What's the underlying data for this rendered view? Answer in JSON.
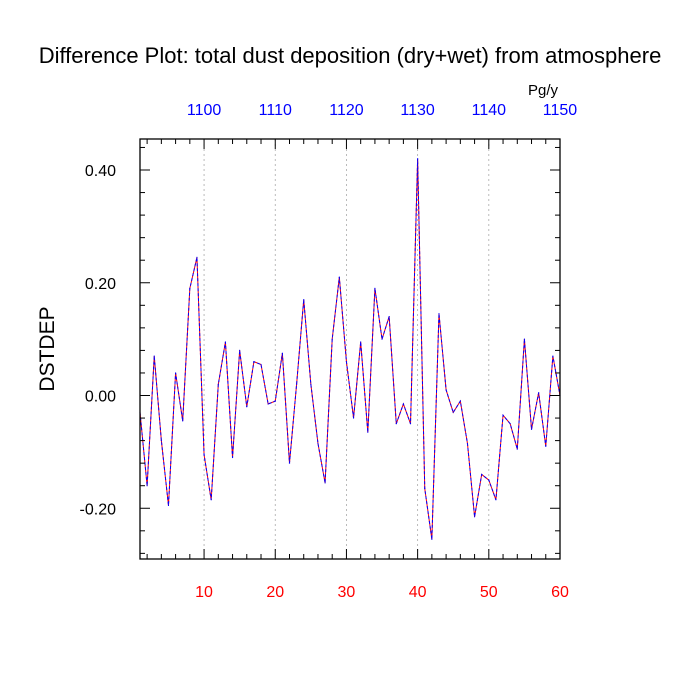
{
  "chart_data": {
    "type": "line",
    "title": "Difference Plot: total dust deposition (dry+wet) from atmosphere",
    "ylabel": "DSTDEP",
    "units": "Pg/y",
    "xlim": [
      1,
      60
    ],
    "ylim": [
      -0.29,
      0.455
    ],
    "x_bottom_ticks": [
      10,
      20,
      30,
      40,
      50,
      60
    ],
    "x_top_ticks": [
      {
        "x": 10,
        "label": "1100"
      },
      {
        "x": 20,
        "label": "1110"
      },
      {
        "x": 30,
        "label": "1120"
      },
      {
        "x": 40,
        "label": "1130"
      },
      {
        "x": 50,
        "label": "1140"
      },
      {
        "x": 60,
        "label": "1150"
      }
    ],
    "y_ticks": [
      {
        "v": 0.4,
        "label": "0.40"
      },
      {
        "v": 0.2,
        "label": "0.20"
      },
      {
        "v": 0.0,
        "label": "0.00"
      },
      {
        "v": -0.2,
        "label": "-0.20"
      }
    ],
    "grid": "vertical dotted at major x ticks",
    "colors": {
      "bottom_axis_labels": "#ff0000",
      "top_axis_labels": "#0000ff",
      "line_dash_a": "#ff0000",
      "line_dash_b": "#0000ff",
      "grid": "#aaaaaa"
    },
    "series": [
      {
        "x": [
          1,
          2,
          3,
          4,
          5,
          6,
          7,
          8,
          9,
          10,
          11,
          12,
          13,
          14,
          15,
          16,
          17,
          18,
          19,
          20,
          21,
          22,
          23,
          24,
          25,
          26,
          27,
          28,
          29,
          30,
          31,
          32,
          33,
          34,
          35,
          36,
          37,
          38,
          39,
          40,
          41,
          42,
          43,
          44,
          45,
          46,
          47,
          48,
          49,
          50,
          51,
          52,
          53,
          54,
          55,
          56,
          57,
          58,
          59,
          60
        ],
        "values": [
          -0.03,
          -0.16,
          0.07,
          -0.08,
          -0.195,
          0.04,
          -0.045,
          0.19,
          0.245,
          -0.105,
          -0.185,
          0.02,
          0.095,
          -0.11,
          0.08,
          -0.02,
          0.06,
          0.055,
          -0.015,
          -0.01,
          0.075,
          -0.12,
          0.02,
          0.17,
          0.02,
          -0.085,
          -0.155,
          0.1,
          0.21,
          0.06,
          -0.04,
          0.095,
          -0.065,
          0.19,
          0.1,
          0.14,
          -0.05,
          -0.015,
          -0.05,
          0.42,
          -0.165,
          -0.255,
          0.145,
          0.01,
          -0.03,
          -0.01,
          -0.085,
          -0.215,
          -0.14,
          -0.15,
          -0.185,
          -0.035,
          -0.05,
          -0.095,
          0.1,
          -0.06,
          0.005,
          -0.09,
          0.07,
          0.0
        ]
      }
    ]
  }
}
